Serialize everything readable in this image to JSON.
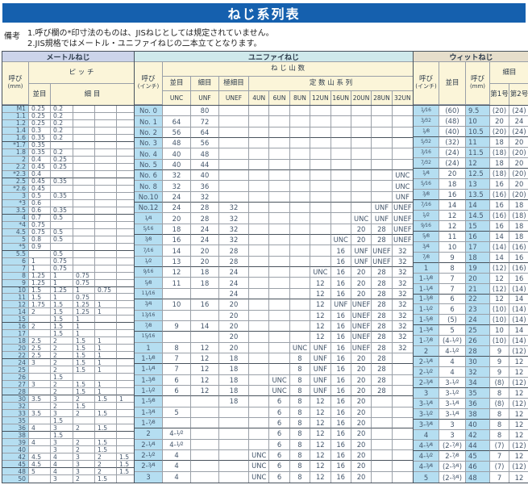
{
  "title": "ねじ系列表",
  "notes": {
    "label": "備考",
    "line1": "1.呼び欄の*印寸法のものは、JISねじとしては規定されていません。",
    "line2": "2.JIS規格ではメートル・ユニファイねじの二本立てとなります。"
  },
  "colors": {
    "title_bar": "#1560ae",
    "metric_strip": "#ccd4ea",
    "unified_strip": "#cfe9eb",
    "whitworth_strip": "#e6decb",
    "header_cream": "#fbf5d9",
    "call_column_blue": "#b5def1"
  },
  "metric": {
    "section_title": "メートルねじ",
    "headers": {
      "call": "呼び",
      "call_unit": "(mm)",
      "pitch": "ピ ッ チ",
      "coarse": "並目",
      "fine": "細 目"
    },
    "band_size": 5,
    "rows": [
      [
        "M1",
        "0.25",
        "0.2",
        "",
        "",
        ""
      ],
      [
        "1.1",
        "0.25",
        "0.2",
        "",
        "",
        ""
      ],
      [
        "1.2",
        "0.25",
        "0.2",
        "",
        "",
        ""
      ],
      [
        "1.4",
        "0.3",
        "0.2",
        "",
        "",
        ""
      ],
      [
        "1.6",
        "0.35",
        "0.2",
        "",
        "",
        ""
      ],
      [
        "*1.7",
        "0.35",
        "",
        "",
        "",
        ""
      ],
      [
        "1.8",
        "0.35",
        "0.2",
        "",
        "",
        ""
      ],
      [
        "2",
        "0.4",
        "0.25",
        "",
        "",
        ""
      ],
      [
        "2.2",
        "0.45",
        "0.25",
        "",
        "",
        ""
      ],
      [
        "*2.3",
        "0.4",
        "",
        "",
        "",
        ""
      ],
      [
        "2.5",
        "0.45",
        "0.35",
        "",
        "",
        ""
      ],
      [
        "*2.6",
        "0.45",
        "",
        "",
        "",
        ""
      ],
      [
        "3",
        "0.5",
        "0.35",
        "",
        "",
        ""
      ],
      [
        "*3",
        "0.6",
        "",
        "",
        "",
        ""
      ],
      [
        "3.5",
        "0.6",
        "0.35",
        "",
        "",
        ""
      ],
      [
        "4",
        "0.7",
        "0.5",
        "",
        "",
        ""
      ],
      [
        "*4",
        "0.75",
        "",
        "",
        "",
        ""
      ],
      [
        "4.5",
        "0.75",
        "0.5",
        "",
        "",
        ""
      ],
      [
        "5",
        "0.8",
        "0.5",
        "",
        "",
        ""
      ],
      [
        "*5",
        "0.9",
        "",
        "",
        "",
        ""
      ],
      [
        "5.5",
        "",
        "0.5",
        "",
        "",
        ""
      ],
      [
        "6",
        "1",
        "0.75",
        "",
        "",
        ""
      ],
      [
        "7",
        "1",
        "0.75",
        "",
        "",
        ""
      ],
      [
        "8",
        "1.25",
        "1",
        "0.75",
        "",
        ""
      ],
      [
        "9",
        "1.25",
        "1",
        "0.75",
        "",
        ""
      ],
      [
        "10",
        "1.5",
        "1.25",
        "1",
        "0.75",
        ""
      ],
      [
        "11",
        "1.5",
        "1",
        "0.75",
        "",
        ""
      ],
      [
        "12",
        "1.75",
        "1.5",
        "1.25",
        "1",
        ""
      ],
      [
        "14",
        "2",
        "1.5",
        "1.25",
        "1",
        ""
      ],
      [
        "15",
        "",
        "1.5",
        "1",
        "",
        ""
      ],
      [
        "16",
        "2",
        "1.5",
        "1",
        "",
        ""
      ],
      [
        "17",
        "",
        "1.5",
        "1",
        "",
        ""
      ],
      [
        "18",
        "2.5",
        "2",
        "1.5",
        "1",
        ""
      ],
      [
        "20",
        "2.5",
        "2",
        "1.5",
        "1",
        ""
      ],
      [
        "22",
        "2.5",
        "2",
        "1.5",
        "1",
        ""
      ],
      [
        "24",
        "3",
        "2",
        "1.5",
        "1",
        ""
      ],
      [
        "25",
        "",
        "2",
        "1.5",
        "1",
        ""
      ],
      [
        "26",
        "",
        "1.5",
        "",
        "",
        ""
      ],
      [
        "27",
        "3",
        "2",
        "1.5",
        "1",
        ""
      ],
      [
        "28",
        "",
        "2",
        "1.5",
        "1",
        ""
      ],
      [
        "30",
        "3.5",
        "3",
        "2",
        "1.5",
        "1"
      ],
      [
        "32",
        "",
        "2",
        "1.5",
        "",
        ""
      ],
      [
        "33",
        "3.5",
        "3",
        "2",
        "1.5",
        ""
      ],
      [
        "35",
        "",
        "1.5",
        "",
        "",
        ""
      ],
      [
        "36",
        "4",
        "3",
        "2",
        "1.5",
        ""
      ],
      [
        "38",
        "",
        "1.5",
        "",
        "",
        ""
      ],
      [
        "39",
        "4",
        "3",
        "2",
        "1.5",
        ""
      ],
      [
        "40",
        "",
        "3",
        "2",
        "1.5",
        ""
      ],
      [
        "42",
        "4.5",
        "4",
        "3",
        "2",
        "1.5"
      ],
      [
        "45",
        "4.5",
        "4",
        "3",
        "2",
        "1.5"
      ],
      [
        "48",
        "5",
        "4",
        "3",
        "2",
        "1.5"
      ],
      [
        "50",
        "",
        "3",
        "2",
        "1.5",
        ""
      ]
    ]
  },
  "unified": {
    "section_title": "ユニファイねじ",
    "headers": {
      "call": "呼び",
      "call_unit": "(インチ)",
      "threads": "ね じ 山 数",
      "coarse": "並目",
      "fine": "細目",
      "extra_fine": "極細目",
      "constant": "定 数 山 系 列",
      "cols": [
        "UNC",
        "UNF",
        "UNEF",
        "4UN",
        "6UN",
        "8UN",
        "12UN",
        "16UN",
        "20UN",
        "28UN",
        "32UN"
      ]
    },
    "band_size": 3,
    "rows": [
      [
        "No. 0",
        "",
        "80",
        "",
        "",
        "",
        "",
        "",
        "",
        "",
        "",
        ""
      ],
      [
        "No. 1",
        "64",
        "72",
        "",
        "",
        "",
        "",
        "",
        "",
        "",
        "",
        ""
      ],
      [
        "No. 2",
        "56",
        "64",
        "",
        "",
        "",
        "",
        "",
        "",
        "",
        "",
        ""
      ],
      [
        "No. 3",
        "48",
        "56",
        "",
        "",
        "",
        "",
        "",
        "",
        "",
        "",
        ""
      ],
      [
        "No. 4",
        "40",
        "48",
        "",
        "",
        "",
        "",
        "",
        "",
        "",
        "",
        ""
      ],
      [
        "No. 5",
        "40",
        "44",
        "",
        "",
        "",
        "",
        "",
        "",
        "",
        "",
        ""
      ],
      [
        "No. 6",
        "32",
        "40",
        "",
        "",
        "",
        "",
        "",
        "",
        "",
        "",
        "UNC"
      ],
      [
        "No. 8",
        "32",
        "36",
        "",
        "",
        "",
        "",
        "",
        "",
        "",
        "",
        "UNC"
      ],
      [
        "No.10",
        "24",
        "32",
        "",
        "",
        "",
        "",
        "",
        "",
        "",
        "",
        "UNF"
      ],
      [
        "No.12",
        "24",
        "28",
        "32",
        "",
        "",
        "",
        "",
        "",
        "",
        "UNF",
        "UNEF"
      ],
      [
        "1/4",
        "20",
        "28",
        "32",
        "",
        "",
        "",
        "",
        "",
        "UNC",
        "UNF",
        "UNEF"
      ],
      [
        "5/16",
        "18",
        "24",
        "32",
        "",
        "",
        "",
        "",
        "",
        "20",
        "28",
        "UNEF"
      ],
      [
        "3/8",
        "16",
        "24",
        "32",
        "",
        "",
        "",
        "",
        "UNC",
        "20",
        "28",
        "UNEF"
      ],
      [
        "7/16",
        "14",
        "20",
        "28",
        "",
        "",
        "",
        "",
        "16",
        "UNF",
        "UNEF",
        "32"
      ],
      [
        "1/2",
        "13",
        "20",
        "28",
        "",
        "",
        "",
        "",
        "16",
        "UNF",
        "UNEF",
        "32"
      ],
      [
        "9/16",
        "12",
        "18",
        "24",
        "",
        "",
        "",
        "UNC",
        "16",
        "20",
        "28",
        "32"
      ],
      [
        "5/8",
        "11",
        "18",
        "24",
        "",
        "",
        "",
        "12",
        "16",
        "20",
        "28",
        "32"
      ],
      [
        "11/16",
        "",
        "",
        "24",
        "",
        "",
        "",
        "12",
        "16",
        "20",
        "28",
        "32"
      ],
      [
        "3/4",
        "10",
        "16",
        "20",
        "",
        "",
        "",
        "12",
        "UNF",
        "UNEF",
        "28",
        "32"
      ],
      [
        "13/16",
        "",
        "",
        "20",
        "",
        "",
        "",
        "12",
        "16",
        "UNEF",
        "28",
        "32"
      ],
      [
        "7/8",
        "9",
        "14",
        "20",
        "",
        "",
        "",
        "12",
        "16",
        "UNEF",
        "28",
        "32"
      ],
      [
        "15/16",
        "",
        "",
        "20",
        "",
        "",
        "",
        "12",
        "16",
        "UNEF",
        "28",
        "32"
      ],
      [
        "1",
        "8",
        "12",
        "20",
        "",
        "",
        "UNC",
        "UNF",
        "16",
        "UNEF",
        "28",
        "32"
      ],
      [
        "1-1/8",
        "7",
        "12",
        "18",
        "",
        "",
        "8",
        "UNF",
        "16",
        "20",
        "28",
        ""
      ],
      [
        "1-1/4",
        "7",
        "12",
        "18",
        "",
        "",
        "8",
        "UNF",
        "16",
        "20",
        "28",
        ""
      ],
      [
        "1-3/8",
        "6",
        "12",
        "18",
        "",
        "UNC",
        "8",
        "UNF",
        "16",
        "20",
        "28",
        ""
      ],
      [
        "1-1/2",
        "6",
        "12",
        "18",
        "",
        "UNC",
        "8",
        "UNF",
        "16",
        "20",
        "28",
        ""
      ],
      [
        "1-5/8",
        "",
        "",
        "18",
        "",
        "6",
        "8",
        "12",
        "16",
        "20",
        "",
        ""
      ],
      [
        "1-3/4",
        "5",
        "",
        "",
        "",
        "6",
        "8",
        "12",
        "16",
        "20",
        "",
        ""
      ],
      [
        "1-7/8",
        "",
        "",
        "",
        "",
        "6",
        "8",
        "12",
        "16",
        "20",
        "",
        ""
      ],
      [
        "2",
        "4-1/2",
        "",
        "",
        "",
        "6",
        "8",
        "12",
        "16",
        "20",
        "",
        ""
      ],
      [
        "2-1/4",
        "4-1/2",
        "",
        "",
        "",
        "6",
        "8",
        "12",
        "16",
        "20",
        "",
        ""
      ],
      [
        "2-1/2",
        "4",
        "",
        "",
        "UNC",
        "6",
        "8",
        "12",
        "16",
        "20",
        "",
        ""
      ],
      [
        "2-3/4",
        "4",
        "",
        "",
        "UNC",
        "6",
        "8",
        "12",
        "16",
        "20",
        "",
        ""
      ],
      [
        "3",
        "4",
        "",
        "",
        "UNC",
        "6",
        "8",
        "12",
        "16",
        "20",
        "",
        ""
      ]
    ]
  },
  "whitworth": {
    "section_title": "ウィットねじ",
    "headers": {
      "call_inch": "呼び",
      "call_inch_unit": "(インチ)",
      "coarse": "並目",
      "call_mm": "呼び",
      "call_mm_unit": "(mm)",
      "fine": "細目",
      "no1": "第1号",
      "no2": "第2号"
    },
    "band_size": 3,
    "rows": [
      [
        "1/16",
        "(60)",
        "9.5",
        "(20)",
        "(24)"
      ],
      [
        "3/32",
        "(48)",
        "10",
        "20",
        "24"
      ],
      [
        "1/8",
        "(40)",
        "10.5",
        "(20)",
        "(24)"
      ],
      [
        "5/32",
        "(32)",
        "11",
        "18",
        "20"
      ],
      [
        "3/16",
        "(24)",
        "11.5",
        "(18)",
        "(20)"
      ],
      [
        "7/32",
        "(24)",
        "12",
        "18",
        "20"
      ],
      [
        "1/4",
        "20",
        "12.5",
        "(18)",
        "(20)"
      ],
      [
        "5/16",
        "18",
        "13",
        "16",
        "20"
      ],
      [
        "3/8",
        "16",
        "13.5",
        "(16)",
        "(20)"
      ],
      [
        "7/16",
        "14",
        "14",
        "16",
        "18"
      ],
      [
        "1/2",
        "12",
        "14.5",
        "(16)",
        "(18)"
      ],
      [
        "9/16",
        "12",
        "15",
        "16",
        "18"
      ],
      [
        "5/8",
        "11",
        "16",
        "14",
        "18"
      ],
      [
        "3/4",
        "10",
        "17",
        "(14)",
        "(16)"
      ],
      [
        "7/8",
        "9",
        "18",
        "14",
        "16"
      ],
      [
        "1",
        "8",
        "19",
        "(12)",
        "(16)"
      ],
      [
        "1-1/8",
        "7",
        "20",
        "12",
        "16"
      ],
      [
        "1-1/4",
        "7",
        "21",
        "(12)",
        "(14)"
      ],
      [
        "1-3/8",
        "6",
        "22",
        "12",
        "14"
      ],
      [
        "1-1/2",
        "6",
        "23",
        "(10)",
        "(14)"
      ],
      [
        "1-5/8",
        "(5)",
        "24",
        "(10)",
        "(14)"
      ],
      [
        "1-3/4",
        "5",
        "25",
        "10",
        "14"
      ],
      [
        "1-7/8",
        "(4-1/2)",
        "26",
        "(10)",
        "(14)"
      ],
      [
        "2",
        "4-1/2",
        "28",
        "9",
        "(12)"
      ],
      [
        "2-1/4",
        "4",
        "30",
        "9",
        "12"
      ],
      [
        "2-1/2",
        "4",
        "32",
        "9",
        "12"
      ],
      [
        "2-3/4",
        "3-1/2",
        "34",
        "(8)",
        "(12)"
      ],
      [
        "3",
        "3-1/2",
        "35",
        "8",
        "12"
      ],
      [
        "3-1/4",
        "3-1/4",
        "36",
        "(8)",
        "(12)"
      ],
      [
        "3-1/2",
        "3-1/4",
        "38",
        "8",
        "12"
      ],
      [
        "3-3/4",
        "3",
        "40",
        "8",
        "12"
      ],
      [
        "4",
        "3",
        "42",
        "8",
        "12"
      ],
      [
        "4-1/4",
        "(2-7/8)",
        "44",
        "(7)",
        "(12)"
      ],
      [
        "4-1/2",
        "2-7/8",
        "45",
        "7",
        "12"
      ],
      [
        "4-3/4",
        "(2-3/4)",
        "46",
        "(7)",
        "(12)"
      ],
      [
        "5",
        "(2-3/4)",
        "48",
        "7",
        "12"
      ]
    ]
  }
}
